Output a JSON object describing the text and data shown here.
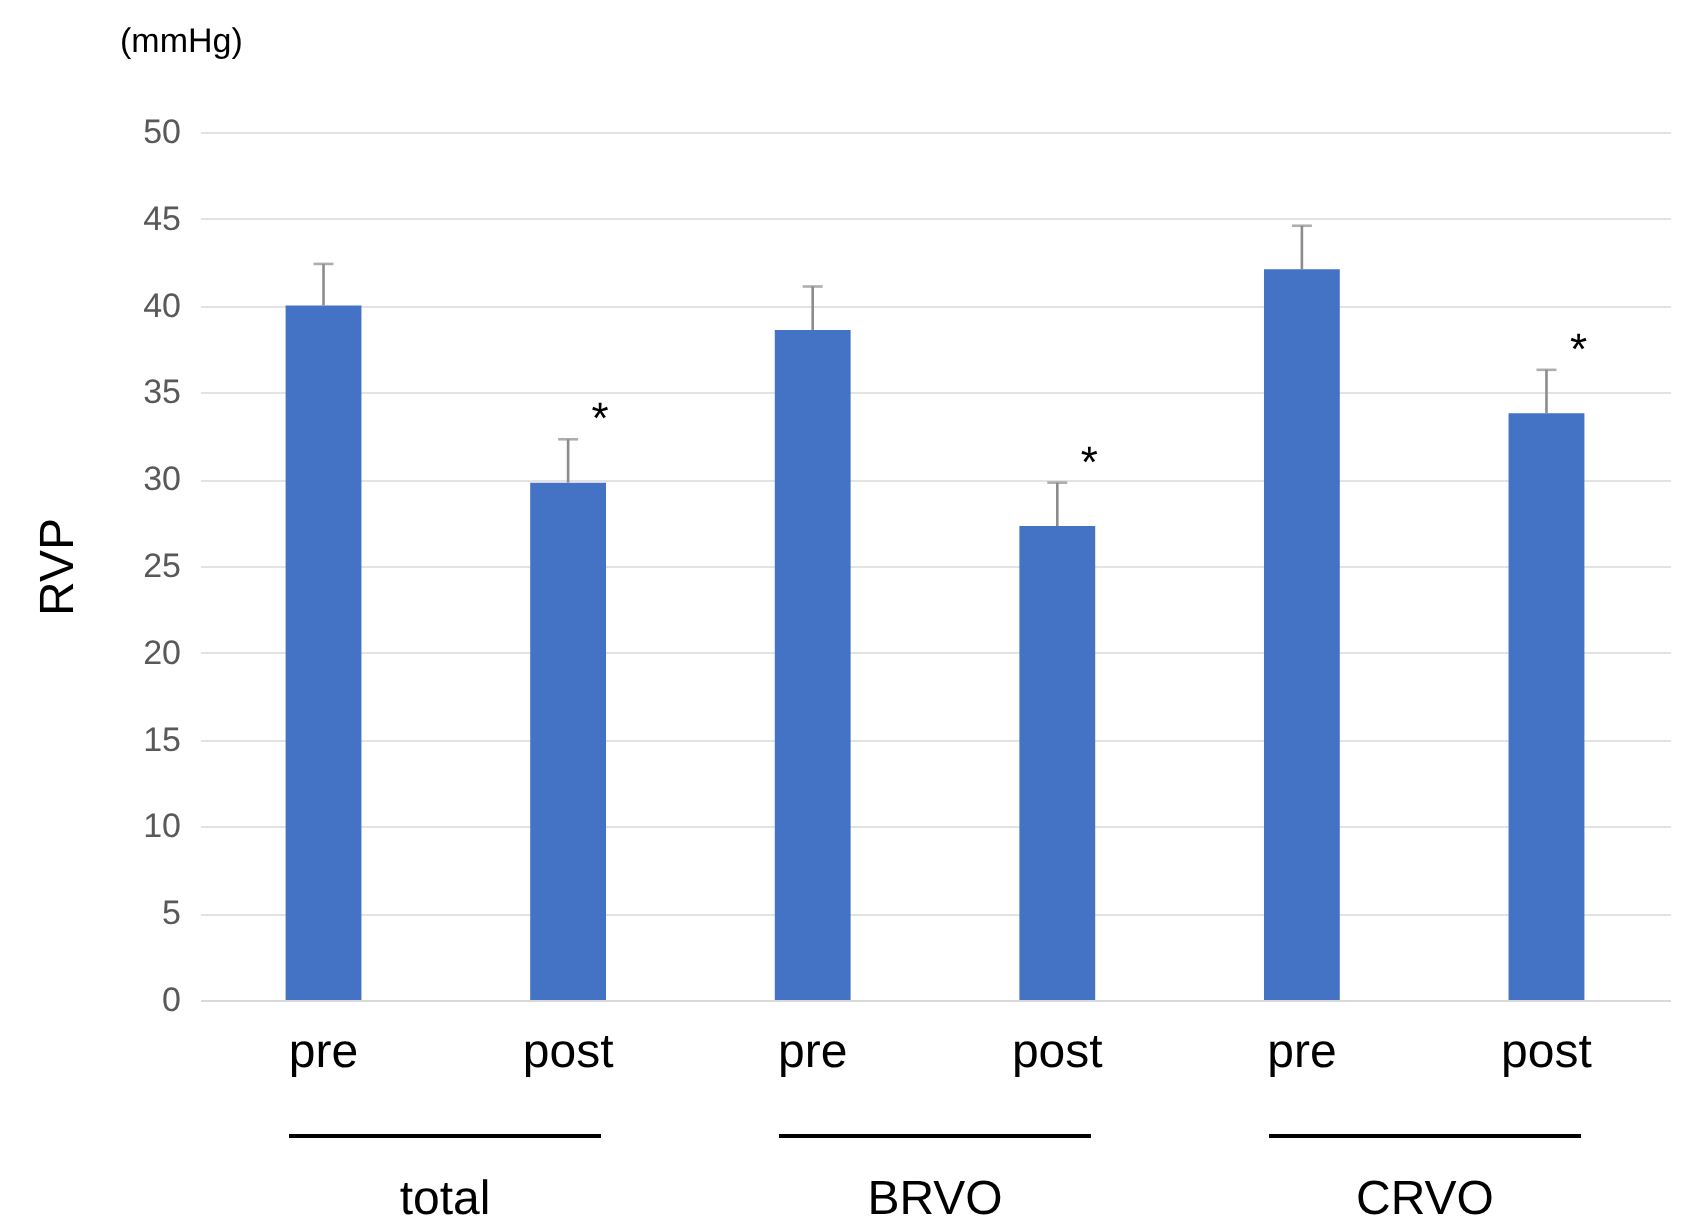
{
  "chart_data": {
    "type": "bar",
    "subtitle": "(mmHg)",
    "ylabel": "RVP",
    "categories": [
      "pre",
      "post",
      "pre",
      "post",
      "pre",
      "post"
    ],
    "values": [
      40.0,
      29.8,
      38.6,
      27.3,
      42.1,
      33.8
    ],
    "errors": [
      [
        40.0,
        42.4
      ],
      [
        29.8,
        32.3
      ],
      [
        38.6,
        41.1
      ],
      [
        27.3,
        29.8
      ],
      [
        42.1,
        44.6
      ],
      [
        33.8,
        36.3
      ]
    ],
    "value_labels": [
      null,
      "*",
      null,
      "*",
      null,
      "*"
    ],
    "color": "#4472c4",
    "ylim": [
      0,
      50
    ],
    "yticks": [
      0,
      5,
      10,
      15,
      20,
      25,
      30,
      35,
      40,
      45,
      50
    ],
    "grid": "y",
    "annotations": [
      "total",
      "BRVO",
      "CRVO"
    ]
  }
}
